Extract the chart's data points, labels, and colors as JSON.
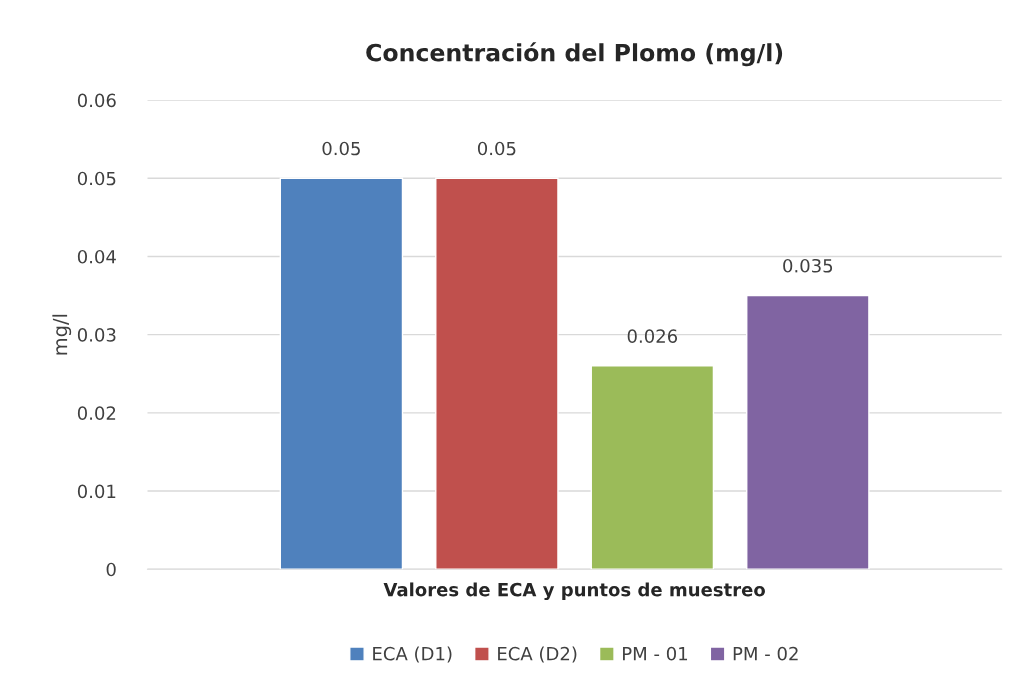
{
  "chart_data": {
    "type": "bar",
    "title": "Concentración del Plomo (mg/l)",
    "xlabel": "Valores de ECA y puntos de muestreo",
    "ylabel": "mg/l",
    "categories": [
      null
    ],
    "series": [
      {
        "name": "ECA (D1)",
        "color": "#4f81bd",
        "values": [
          0.05
        ]
      },
      {
        "name": "ECA (D2)",
        "color": "#c0504d",
        "values": [
          0.05
        ]
      },
      {
        "name": "PM - 01",
        "color": "#9bbb59",
        "values": [
          0.026
        ]
      },
      {
        "name": "PM - 02",
        "color": "#8064a2",
        "values": [
          0.035
        ]
      }
    ],
    "ylim": [
      0,
      0.06
    ],
    "yticks": [
      0,
      0.01,
      0.02,
      0.03,
      0.04,
      0.05,
      0.06
    ],
    "grid": "y",
    "legend": "bottom",
    "data_labels": true
  }
}
